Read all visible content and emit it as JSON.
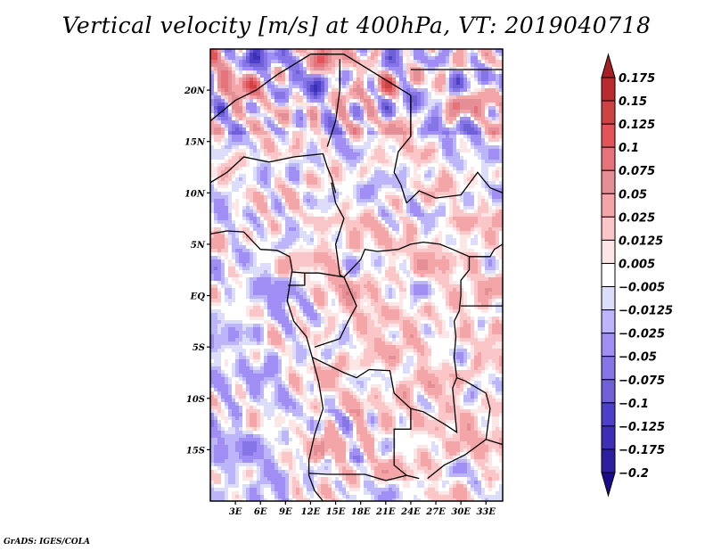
{
  "title": "Vertical velocity [m/s] at 400hPa, VT: 2019040718",
  "credit": "GrADS: IGES/COLA",
  "chart_data": {
    "type": "heatmap",
    "title": "Vertical velocity [m/s] at 400hPa, VT: 2019040718",
    "variable": "Vertical velocity",
    "units": "m/s",
    "level": "400hPa",
    "valid_time": "2019040718",
    "lon_range": [
      0,
      35
    ],
    "lat_range": [
      -20,
      24
    ],
    "x_ticks": [
      {
        "value": 3,
        "label": "3E"
      },
      {
        "value": 6,
        "label": "6E"
      },
      {
        "value": 9,
        "label": "9E"
      },
      {
        "value": 12,
        "label": "12E"
      },
      {
        "value": 15,
        "label": "15E"
      },
      {
        "value": 18,
        "label": "18E"
      },
      {
        "value": 21,
        "label": "21E"
      },
      {
        "value": 24,
        "label": "24E"
      },
      {
        "value": 27,
        "label": "27E"
      },
      {
        "value": 30,
        "label": "30E"
      },
      {
        "value": 33,
        "label": "33E"
      }
    ],
    "y_ticks": [
      {
        "value": 20,
        "label": "20N"
      },
      {
        "value": 15,
        "label": "15N"
      },
      {
        "value": 10,
        "label": "10N"
      },
      {
        "value": 5,
        "label": "5N"
      },
      {
        "value": 0,
        "label": "EQ"
      },
      {
        "value": -5,
        "label": "5S"
      },
      {
        "value": -10,
        "label": "10S"
      },
      {
        "value": -15,
        "label": "15S"
      }
    ],
    "colorbar": {
      "orientation": "vertical",
      "extend": "both",
      "levels": [
        0.175,
        0.15,
        0.125,
        0.1,
        0.075,
        0.05,
        0.025,
        0.0125,
        0.005,
        -0.005,
        -0.0125,
        -0.025,
        -0.05,
        -0.075,
        -0.1,
        -0.125,
        -0.175,
        -0.2
      ],
      "labels": [
        "0.175",
        "0.15",
        "0.125",
        "0.1",
        "0.075",
        "0.05",
        "0.025",
        "0.0125",
        "0.005",
        "−0.005",
        "−0.0125",
        "−0.025",
        "−0.05",
        "−0.075",
        "−0.1",
        "−0.125",
        "−0.175",
        "−0.2"
      ],
      "colors": [
        "#a51f24",
        "#b92b2e",
        "#cc4344",
        "#e25457",
        "#e6737a",
        "#e38f95",
        "#f4a5a8",
        "#fac6c7",
        "#fde6e6",
        "#ffffff",
        "#dcdcfb",
        "#bdb5f9",
        "#a08ef4",
        "#8575e6",
        "#6f60d8",
        "#4c3fc8",
        "#3d2eb8",
        "#2d20a0",
        "#1a0a8c"
      ]
    }
  }
}
